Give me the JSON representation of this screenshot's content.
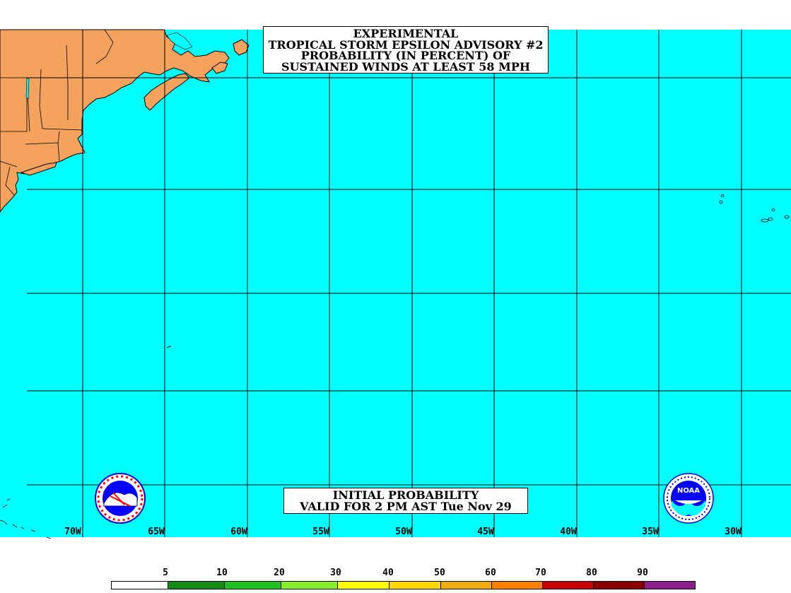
{
  "title": {
    "lines": [
      "EXPERIMENTAL",
      "TROPICAL STORM EPSILON ADVISORY #2",
      "PROBABILITY (IN PERCENT) OF",
      "SUSTAINED WINDS AT LEAST 58 MPH"
    ]
  },
  "validity": {
    "lines": [
      "INITIAL PROBABILITY",
      "VALID FOR 2 PM AST Tue Nov 29"
    ]
  },
  "longitude_labels": [
    "70W",
    "65W",
    "60W",
    "55W",
    "50W",
    "45W",
    "40W",
    "35W",
    "30W"
  ],
  "logos": {
    "nws": "nws-logo-icon",
    "noaa": "noaa-logo-icon",
    "noaa_text": "NOAA"
  },
  "legend": {
    "thresholds": [
      "5",
      "10",
      "20",
      "30",
      "40",
      "50",
      "60",
      "70",
      "80",
      "90"
    ],
    "colors": [
      "#ffffff",
      "#168c16",
      "#20c220",
      "#86ee2a",
      "#ffff00",
      "#ffd700",
      "#f0ad0f",
      "#ff7f00",
      "#c80000",
      "#880000",
      "#8c1e8c"
    ]
  },
  "map_colors": {
    "ocean": "#00ffff",
    "land": "#f5a25e"
  }
}
